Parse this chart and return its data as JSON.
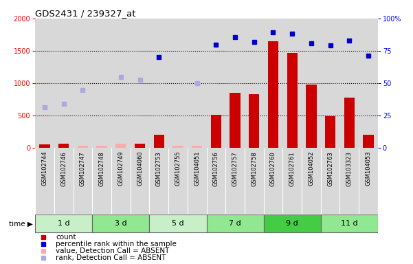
{
  "title": "GDS2431 / 239327_at",
  "samples": [
    "GSM102744",
    "GSM102746",
    "GSM102747",
    "GSM102748",
    "GSM102749",
    "GSM104060",
    "GSM102753",
    "GSM102755",
    "GSM104051",
    "GSM102756",
    "GSM102757",
    "GSM102758",
    "GSM102760",
    "GSM102761",
    "GSM104052",
    "GSM102763",
    "GSM103323",
    "GSM104053"
  ],
  "time_groups": [
    {
      "label": "1 d",
      "start": 0,
      "end": 3,
      "color": "#c8f0c8"
    },
    {
      "label": "3 d",
      "start": 3,
      "end": 6,
      "color": "#90e890"
    },
    {
      "label": "5 d",
      "start": 6,
      "end": 9,
      "color": "#c8f0c8"
    },
    {
      "label": "7 d",
      "start": 9,
      "end": 12,
      "color": "#90e890"
    },
    {
      "label": "9 d",
      "start": 12,
      "end": 15,
      "color": "#44cc44"
    },
    {
      "label": "11 d",
      "start": 15,
      "end": 18,
      "color": "#90e890"
    }
  ],
  "bar_values": [
    50,
    60,
    30,
    30,
    60,
    60,
    200,
    30,
    30,
    510,
    850,
    830,
    1650,
    1470,
    980,
    490,
    780,
    200
  ],
  "bar_absent": [
    false,
    false,
    true,
    true,
    true,
    false,
    false,
    true,
    true,
    false,
    false,
    false,
    false,
    false,
    false,
    false,
    false,
    false
  ],
  "rank_values": [
    630,
    680,
    890,
    null,
    1090,
    1050,
    1400,
    null,
    1000,
    1590,
    1710,
    1640,
    1790,
    1760,
    1620,
    1580,
    1660,
    1420
  ],
  "rank_absent": [
    true,
    true,
    true,
    null,
    true,
    true,
    false,
    null,
    true,
    false,
    false,
    false,
    false,
    false,
    false,
    false,
    false,
    false
  ],
  "left_ylim": [
    0,
    2000
  ],
  "left_yticks": [
    0,
    500,
    1000,
    1500,
    2000
  ],
  "right_ylim": [
    0,
    100
  ],
  "right_yticks": [
    0,
    25,
    50,
    75,
    100
  ],
  "bar_color_present": "#cc0000",
  "bar_color_absent": "#ffaaaa",
  "rank_color_present": "#0000cc",
  "rank_color_absent": "#aaaadd",
  "col_bg_color": "#d8d8d8",
  "plot_bg_color": "#ffffff",
  "grid_color": "#000000",
  "legend_items": [
    {
      "color": "#cc0000",
      "marker": "s",
      "label": "count"
    },
    {
      "color": "#0000cc",
      "marker": "s",
      "label": "percentile rank within the sample"
    },
    {
      "color": "#ffaaaa",
      "marker": "s",
      "label": "value, Detection Call = ABSENT"
    },
    {
      "color": "#aaaadd",
      "marker": "s",
      "label": "rank, Detection Call = ABSENT"
    }
  ]
}
